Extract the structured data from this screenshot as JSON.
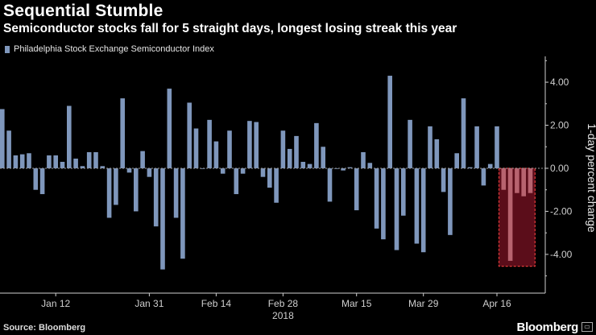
{
  "title": "Sequential Stumble",
  "subtitle": "Semiconductor stocks fall for 5 straight days, longest losing streak this year",
  "source": "Source: Bloomberg",
  "brand": "Bloomberg",
  "colors": {
    "bar": "#7f97bc",
    "highlight_fill": "#6b0f1e",
    "highlight_border": "#e23b3b",
    "axis": "#cfcfcf"
  },
  "chart_data": {
    "type": "bar",
    "series": [
      {
        "name": "Philadelphia Stock Exchange Semiconductor Index",
        "values": [
          2.75,
          1.75,
          0.6,
          0.65,
          0.7,
          -1.0,
          -1.2,
          0.6,
          0.6,
          0.3,
          2.9,
          0.45,
          0.1,
          0.75,
          0.75,
          0.1,
          -2.3,
          -1.7,
          3.25,
          -0.2,
          -2.0,
          0.8,
          -0.4,
          -2.7,
          -4.7,
          3.7,
          -2.3,
          -4.2,
          3.05,
          1.85,
          0.0,
          2.25,
          1.25,
          -0.25,
          1.75,
          -1.2,
          -0.25,
          2.2,
          2.15,
          -0.4,
          -0.9,
          -1.6,
          1.75,
          0.9,
          1.5,
          0.3,
          0.2,
          2.1,
          1.0,
          -1.55,
          0.0,
          -0.1,
          0.05,
          -1.95,
          0.75,
          0.25,
          -2.8,
          -3.3,
          4.3,
          -3.8,
          -2.2,
          2.25,
          -3.5,
          -3.9,
          1.95,
          1.35,
          -1.1,
          -3.1,
          0.7,
          3.25,
          0.05,
          1.95,
          -0.8,
          0.2,
          1.95,
          -1.0,
          -4.3,
          -1.15,
          -1.3,
          -1.15
        ]
      }
    ],
    "x_ticks": [
      "Jan 12",
      "Jan 31",
      "Feb 14",
      "Feb 28",
      "Mar 15",
      "Mar 29",
      "Apr 16"
    ],
    "x_year": "2018",
    "y_ticks": [
      "4.00",
      "2.00",
      "0.00",
      "-2.00",
      "-4.00"
    ],
    "y_tick_values": [
      4,
      2,
      0,
      -2,
      -4
    ],
    "ylabel": "1-day percent change",
    "ylim": [
      -5.8,
      5.2
    ],
    "highlight": {
      "from_index": 75,
      "to_index": 79
    },
    "grid": false,
    "legend_position": "top-left"
  }
}
